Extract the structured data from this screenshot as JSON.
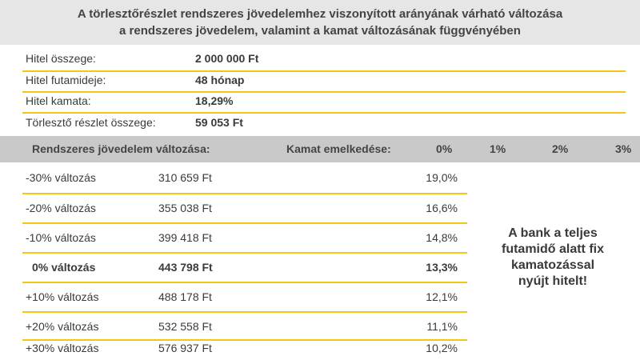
{
  "title": {
    "line1": "A törlesztőrészlet rendszeres jövedelemhez viszonyított arányának várható változása",
    "line2": "a rendszeres jövedelem, valamint a kamat változásának függvényében"
  },
  "loan": [
    {
      "label": "Hitel összege:",
      "value": "2 000 000 Ft"
    },
    {
      "label": "Hitel futamideje:",
      "value": "48 hónap"
    },
    {
      "label": "Hitel kamata:",
      "value": "18,29%"
    },
    {
      "label": "Törlesztő részlet összege:",
      "value": "59 053 Ft"
    }
  ],
  "table_header": {
    "income_change": "Rendszeres jövedelem változása:",
    "rate_increase": "Kamat emelkedése:",
    "rate_columns": [
      "0%",
      "1%",
      "2%",
      "3%"
    ]
  },
  "rows": [
    {
      "change": "-30% változás",
      "income": "310 659 Ft",
      "ratio": "19,0%"
    },
    {
      "change": "-20% változás",
      "income": "355 038 Ft",
      "ratio": "16,6%"
    },
    {
      "change": "-10% változás",
      "income": "399 418 Ft",
      "ratio": "14,8%"
    },
    {
      "change": "0% változás",
      "income": "443 798 Ft",
      "ratio": "13,3%"
    },
    {
      "change": "+10% változás",
      "income": "488 178 Ft",
      "ratio": "12,1%"
    },
    {
      "change": "+20% változás",
      "income": "532 558 Ft",
      "ratio": "11,1%"
    },
    {
      "change": "+30% változás",
      "income": "576 937 Ft",
      "ratio": "10,2%"
    }
  ],
  "note": {
    "line1": "A bank a teljes",
    "line2": "futamidő alatt fix",
    "line3": "kamatozással",
    "line4": "nyújt hitelt!"
  },
  "colors": {
    "accent": "#f5c518",
    "title_bg": "#e6e6e6",
    "header_bg": "#c9c9c9"
  }
}
